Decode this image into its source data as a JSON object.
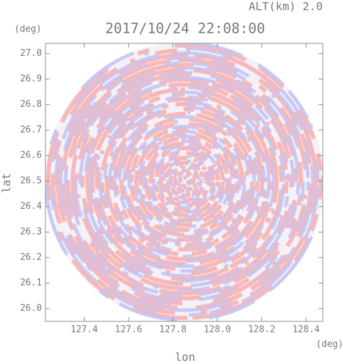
{
  "chart_data": {
    "type": "radar-ppi",
    "title": "2017/10/24 22:08:00",
    "subtitle": "ALT(km) 2.0",
    "x_label": "lon",
    "y_label": "lat",
    "x_unit": "(deg)",
    "y_unit": "(deg)",
    "xlim": [
      127.225,
      128.475
    ],
    "ylim": [
      25.95,
      27.04
    ],
    "xticks": [
      127.4,
      127.6,
      127.8,
      {
        "value": 128.0,
        "label": "128.0"
      },
      128.2,
      128.4
    ],
    "yticks": [
      {
        "value": 26.0,
        "label": "26.0"
      },
      26.1,
      26.2,
      26.3,
      26.4,
      26.5,
      26.6,
      26.7,
      26.8,
      26.9,
      {
        "value": 27.0,
        "label": "27.0"
      }
    ]
  }
}
